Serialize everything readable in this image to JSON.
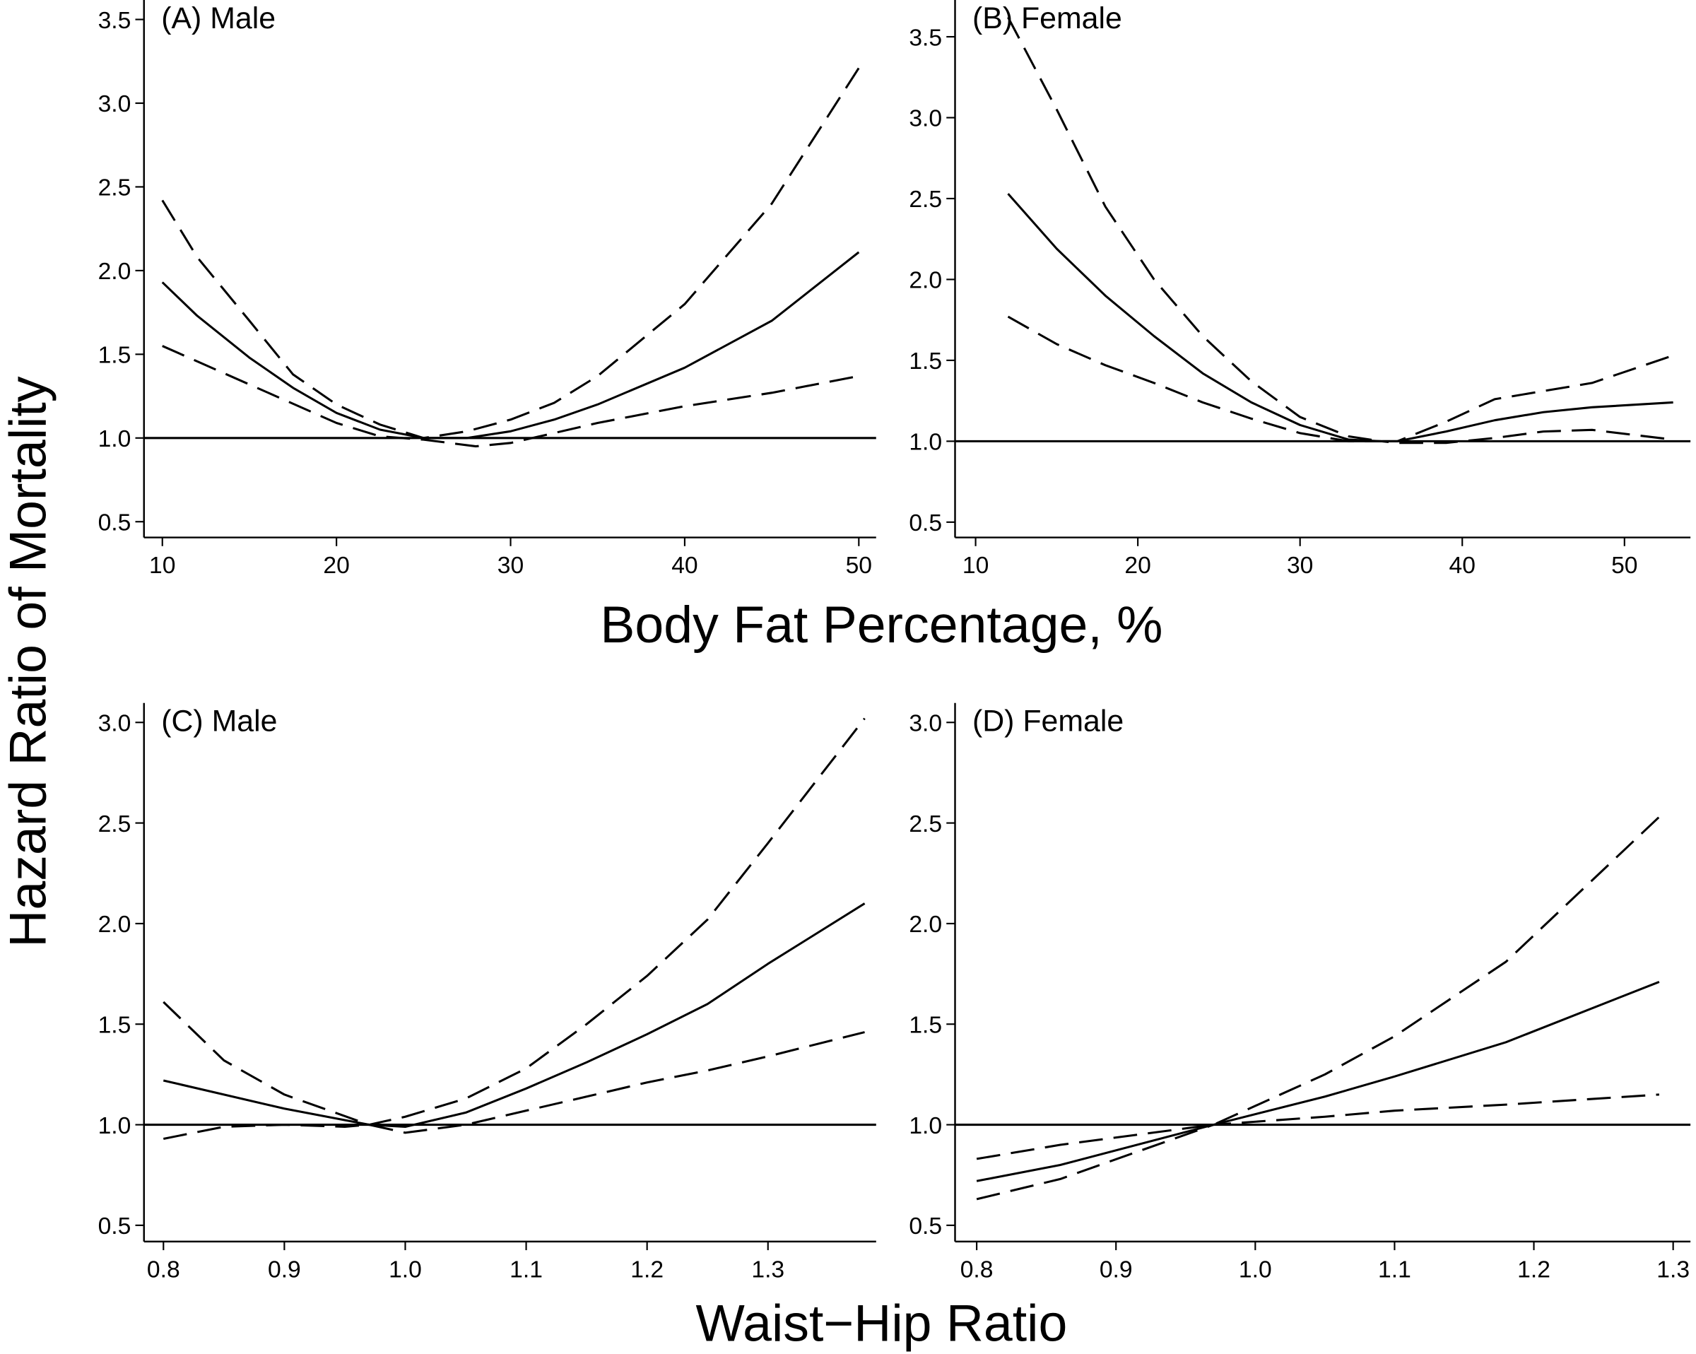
{
  "y_label": "Hazard Ratio of Mortality",
  "x_label_top": "Body Fat Percentage, %",
  "x_label_bottom": "Waist−Hip Ratio",
  "chart_data": [
    {
      "type": "line",
      "title": "(A) Male",
      "xticks": [
        10,
        20,
        30,
        40,
        50
      ],
      "yticks": [
        0.5,
        1.0,
        1.5,
        2.0,
        2.5,
        3.0,
        3.5
      ],
      "reference_line": 1.0,
      "series": [
        {
          "style": "solid",
          "x": [
            10,
            12,
            15,
            17.5,
            20,
            22.5,
            25,
            27.5,
            30,
            32.5,
            35,
            40,
            45,
            50
          ],
          "y": [
            1.93,
            1.73,
            1.48,
            1.3,
            1.15,
            1.05,
            1.0,
            1.0,
            1.04,
            1.11,
            1.2,
            1.42,
            1.7,
            2.11
          ]
        },
        {
          "style": "dashed",
          "x": [
            10,
            12,
            15,
            17.5,
            20,
            22.5,
            25,
            27.5,
            30,
            32.5,
            35,
            40,
            45,
            50
          ],
          "y": [
            2.42,
            2.08,
            1.7,
            1.38,
            1.2,
            1.08,
            1.0,
            1.04,
            1.11,
            1.21,
            1.37,
            1.8,
            2.4,
            3.21
          ]
        },
        {
          "style": "dashed",
          "x": [
            10,
            15,
            20,
            22.5,
            25,
            28,
            30,
            32.5,
            35,
            40,
            45,
            50
          ],
          "y": [
            1.55,
            1.32,
            1.09,
            1.01,
            0.99,
            0.95,
            0.97,
            1.03,
            1.09,
            1.19,
            1.27,
            1.37
          ]
        }
      ]
    },
    {
      "type": "line",
      "title": "(B) Female",
      "xticks": [
        10,
        20,
        30,
        40,
        50
      ],
      "yticks": [
        0.5,
        1.0,
        1.5,
        2.0,
        2.5,
        3.0,
        3.5
      ],
      "reference_line": 1.0,
      "series": [
        {
          "style": "solid",
          "x": [
            12,
            15,
            18,
            21,
            24,
            27,
            30,
            33,
            35,
            36,
            39,
            42,
            45,
            48,
            53
          ],
          "y": [
            2.53,
            2.19,
            1.9,
            1.65,
            1.42,
            1.24,
            1.1,
            1.01,
            1.0,
            1.0,
            1.06,
            1.13,
            1.18,
            1.21,
            1.24
          ]
        },
        {
          "style": "dashed",
          "x": [
            12,
            15,
            18,
            21,
            24,
            27,
            30,
            33,
            35,
            36,
            39,
            42,
            45,
            48,
            53
          ],
          "y": [
            3.62,
            3.05,
            2.45,
            2.0,
            1.65,
            1.37,
            1.15,
            1.03,
            1.0,
            1.0,
            1.12,
            1.26,
            1.31,
            1.36,
            1.53
          ]
        },
        {
          "style": "dashed",
          "x": [
            12,
            15,
            18,
            21,
            24,
            27,
            30,
            33,
            35,
            36,
            39,
            42,
            45,
            48,
            53
          ],
          "y": [
            1.77,
            1.6,
            1.47,
            1.36,
            1.24,
            1.14,
            1.05,
            1.0,
            1.0,
            0.99,
            0.99,
            1.02,
            1.06,
            1.07,
            1.01
          ]
        }
      ]
    },
    {
      "type": "line",
      "title": "(C) Male",
      "xticks": [
        0.8,
        0.9,
        1.0,
        1.1,
        1.2,
        1.3
      ],
      "yticks": [
        0.5,
        1.0,
        1.5,
        2.0,
        2.5,
        3.0
      ],
      "reference_line": 1.0,
      "series": [
        {
          "style": "solid",
          "x": [
            0.8,
            0.85,
            0.9,
            0.97,
            1.0,
            1.05,
            1.1,
            1.15,
            1.2,
            1.25,
            1.3,
            1.38
          ],
          "y": [
            1.22,
            1.15,
            1.08,
            1.0,
            0.99,
            1.06,
            1.18,
            1.31,
            1.45,
            1.6,
            1.8,
            2.1
          ]
        },
        {
          "style": "dashed",
          "x": [
            0.8,
            0.85,
            0.9,
            0.97,
            1.0,
            1.05,
            1.1,
            1.15,
            1.2,
            1.25,
            1.3,
            1.38
          ],
          "y": [
            1.61,
            1.32,
            1.15,
            1.0,
            1.04,
            1.13,
            1.28,
            1.5,
            1.74,
            2.02,
            2.4,
            3.02
          ]
        },
        {
          "style": "dashed",
          "x": [
            0.8,
            0.85,
            0.9,
            0.95,
            0.97,
            1.0,
            1.05,
            1.1,
            1.15,
            1.2,
            1.25,
            1.3,
            1.38
          ],
          "y": [
            0.93,
            0.99,
            1.0,
            0.99,
            1.0,
            0.96,
            1.0,
            1.07,
            1.14,
            1.21,
            1.27,
            1.34,
            1.46
          ]
        }
      ]
    },
    {
      "type": "line",
      "title": "(D) Female",
      "xticks": [
        0.8,
        0.9,
        1.0,
        1.1,
        1.2,
        1.3
      ],
      "yticks": [
        0.5,
        1.0,
        1.5,
        2.0,
        2.5,
        3.0
      ],
      "reference_line": 1.0,
      "series": [
        {
          "style": "solid",
          "x": [
            0.8,
            0.86,
            0.97,
            1.05,
            1.1,
            1.18,
            1.29
          ],
          "y": [
            0.72,
            0.8,
            1.0,
            1.14,
            1.24,
            1.41,
            1.71
          ]
        },
        {
          "style": "dashed",
          "x": [
            0.8,
            0.86,
            0.97,
            1.05,
            1.1,
            1.18,
            1.29
          ],
          "y": [
            0.83,
            0.9,
            1.0,
            1.25,
            1.44,
            1.81,
            2.53
          ]
        },
        {
          "style": "dashed",
          "x": [
            0.8,
            0.86,
            0.97,
            1.05,
            1.1,
            1.18,
            1.29
          ],
          "y": [
            0.63,
            0.73,
            1.0,
            1.04,
            1.07,
            1.1,
            1.15
          ]
        }
      ]
    }
  ]
}
